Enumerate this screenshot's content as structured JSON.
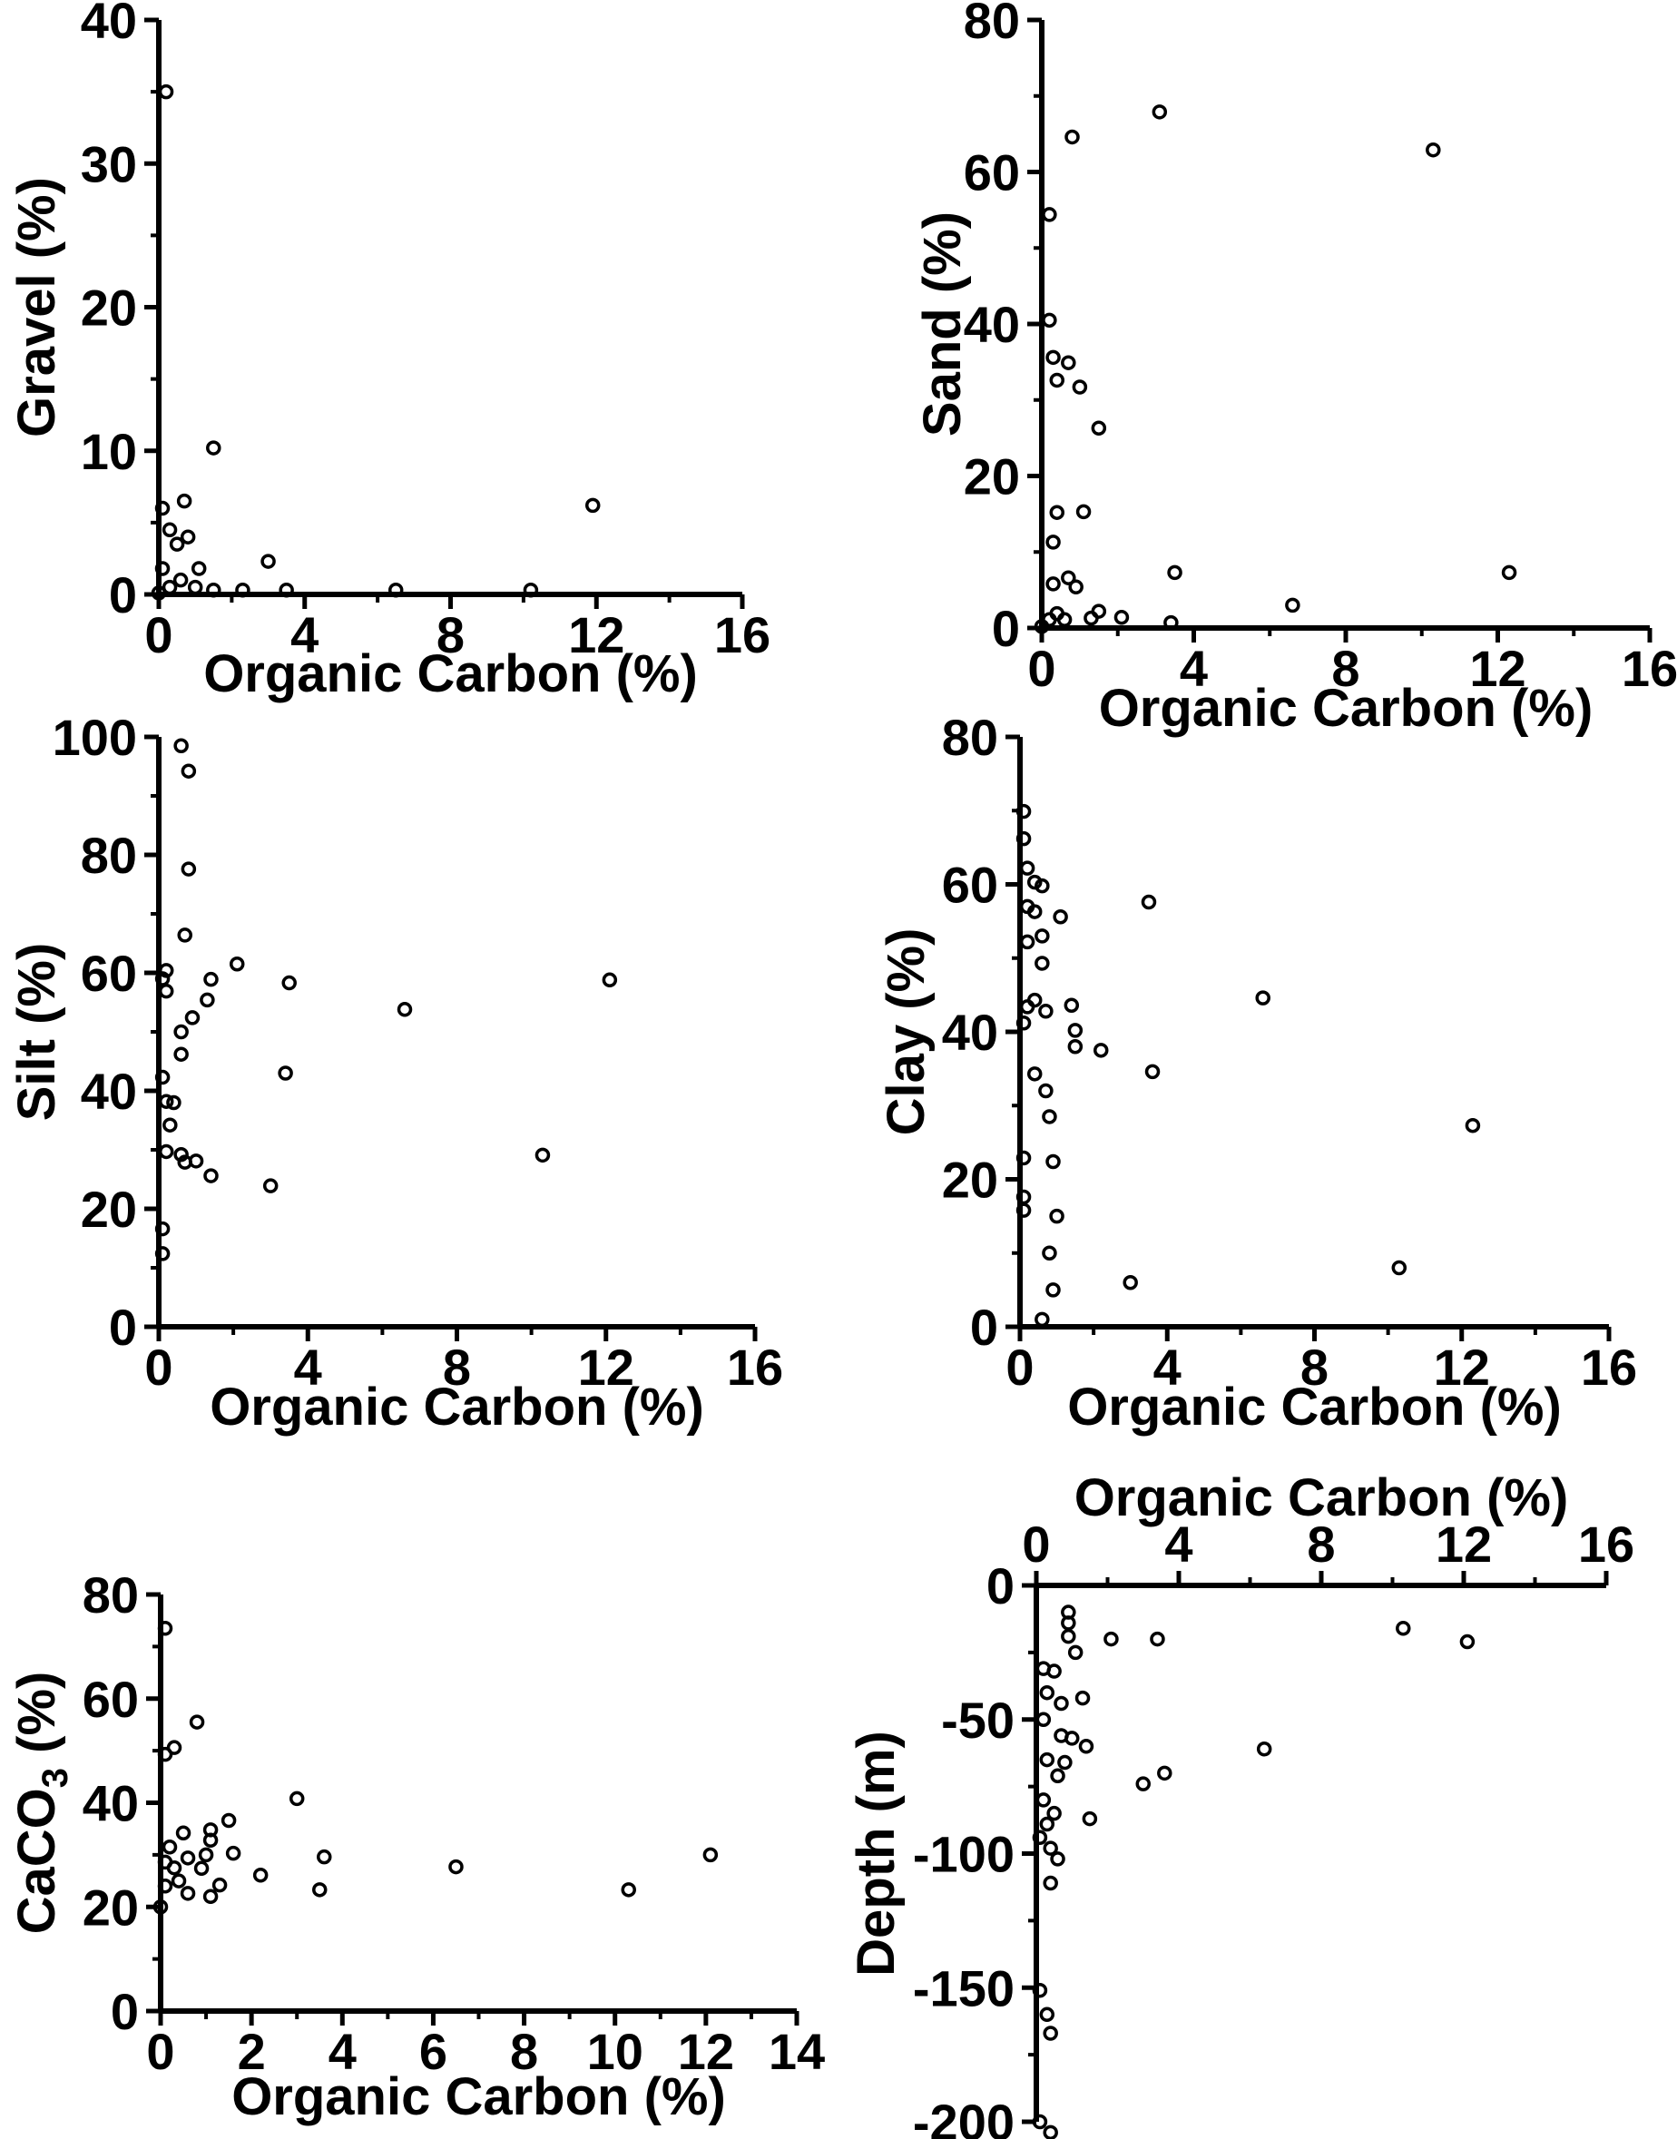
{
  "chart_data": [
    {
      "type": "scatter",
      "panel": "gravel",
      "xlabel": "Organic Carbon (%)",
      "ylabel": "Gravel (%)",
      "xlim": [
        0,
        16
      ],
      "ylim": [
        0,
        40
      ],
      "xticks": [
        0,
        4,
        8,
        12,
        16
      ],
      "yticks": [
        0,
        10,
        20,
        30,
        40
      ],
      "x_axis_position": "bottom",
      "grid": false,
      "points": [
        {
          "x": 0.2,
          "y": 35
        },
        {
          "x": 0.1,
          "y": 6
        },
        {
          "x": 0.3,
          "y": 4.5
        },
        {
          "x": 0.5,
          "y": 3.5
        },
        {
          "x": 0.7,
          "y": 6.5
        },
        {
          "x": 0.8,
          "y": 4
        },
        {
          "x": 0.1,
          "y": 1.8
        },
        {
          "x": 0.3,
          "y": 0.5
        },
        {
          "x": 0.6,
          "y": 1
        },
        {
          "x": 1.0,
          "y": 0.5
        },
        {
          "x": 1.1,
          "y": 1.8
        },
        {
          "x": 1.5,
          "y": 10.2
        },
        {
          "x": 1.5,
          "y": 0.3
        },
        {
          "x": 2.3,
          "y": 0.3
        },
        {
          "x": 3.0,
          "y": 2.3
        },
        {
          "x": 3.5,
          "y": 0.3
        },
        {
          "x": 6.5,
          "y": 0.3
        },
        {
          "x": 10.2,
          "y": 0.3
        },
        {
          "x": 11.9,
          "y": 6.2
        },
        {
          "x": 0.0,
          "y": 0.1
        }
      ]
    },
    {
      "type": "scatter",
      "panel": "sand",
      "xlabel": "Organic Carbon (%)",
      "ylabel": "Sand (%)",
      "xlim": [
        0,
        16
      ],
      "ylim": [
        0,
        80
      ],
      "xticks": [
        0,
        4,
        8,
        12,
        16
      ],
      "yticks": [
        0,
        20,
        40,
        60,
        80
      ],
      "x_axis_position": "bottom",
      "grid": false,
      "points": [
        {
          "x": 3.1,
          "y": 67.9
        },
        {
          "x": 10.3,
          "y": 62.9
        },
        {
          "x": 0.8,
          "y": 64.6
        },
        {
          "x": 0.2,
          "y": 54.4
        },
        {
          "x": 0.2,
          "y": 40.5
        },
        {
          "x": 0.3,
          "y": 35.6
        },
        {
          "x": 0.7,
          "y": 34.9
        },
        {
          "x": 0.4,
          "y": 32.6
        },
        {
          "x": 1.0,
          "y": 31.7
        },
        {
          "x": 1.5,
          "y": 26.3
        },
        {
          "x": 0.4,
          "y": 15.2
        },
        {
          "x": 1.1,
          "y": 15.3
        },
        {
          "x": 0.3,
          "y": 11.3
        },
        {
          "x": 0.7,
          "y": 6.6
        },
        {
          "x": 0.3,
          "y": 5.8
        },
        {
          "x": 0.9,
          "y": 5.4
        },
        {
          "x": 3.5,
          "y": 7.3
        },
        {
          "x": 12.3,
          "y": 7.3
        },
        {
          "x": 6.6,
          "y": 3.0
        },
        {
          "x": 1.5,
          "y": 2.2
        },
        {
          "x": 0.4,
          "y": 1.9
        },
        {
          "x": 0.2,
          "y": 1.1
        },
        {
          "x": 0.6,
          "y": 1.1
        },
        {
          "x": 1.3,
          "y": 1.3
        },
        {
          "x": 2.1,
          "y": 1.4
        },
        {
          "x": 3.4,
          "y": 0.7
        },
        {
          "x": 0.0,
          "y": 0.2
        }
      ]
    },
    {
      "type": "scatter",
      "panel": "silt",
      "xlabel": "Organic Carbon (%)",
      "ylabel": "Silt (%)",
      "xlim": [
        0,
        16
      ],
      "ylim": [
        0,
        100
      ],
      "xticks": [
        0,
        4,
        8,
        12,
        16
      ],
      "yticks": [
        0,
        20,
        40,
        60,
        80,
        100
      ],
      "x_axis_position": "bottom",
      "grid": false,
      "points": [
        {
          "x": 0.6,
          "y": 98.5
        },
        {
          "x": 0.8,
          "y": 94.2
        },
        {
          "x": 0.8,
          "y": 77.6
        },
        {
          "x": 0.7,
          "y": 66.4
        },
        {
          "x": 0.2,
          "y": 60.4
        },
        {
          "x": 0.1,
          "y": 59.0
        },
        {
          "x": 0.2,
          "y": 56.9
        },
        {
          "x": 1.4,
          "y": 58.9
        },
        {
          "x": 2.1,
          "y": 61.5
        },
        {
          "x": 3.5,
          "y": 58.3
        },
        {
          "x": 12.1,
          "y": 58.8
        },
        {
          "x": 1.3,
          "y": 55.4
        },
        {
          "x": 6.6,
          "y": 53.8
        },
        {
          "x": 0.9,
          "y": 52.4
        },
        {
          "x": 0.6,
          "y": 50.0
        },
        {
          "x": 0.6,
          "y": 46.2
        },
        {
          "x": 3.4,
          "y": 43.0
        },
        {
          "x": 0.1,
          "y": 42.3
        },
        {
          "x": 0.2,
          "y": 38.2
        },
        {
          "x": 0.4,
          "y": 38.0
        },
        {
          "x": 0.3,
          "y": 34.2
        },
        {
          "x": 0.2,
          "y": 29.7
        },
        {
          "x": 0.6,
          "y": 29.2
        },
        {
          "x": 0.7,
          "y": 27.9
        },
        {
          "x": 1.0,
          "y": 28.1
        },
        {
          "x": 10.3,
          "y": 29.1
        },
        {
          "x": 1.4,
          "y": 25.6
        },
        {
          "x": 3.0,
          "y": 23.9
        },
        {
          "x": 0.1,
          "y": 16.6
        },
        {
          "x": 0.1,
          "y": 12.4
        }
      ]
    },
    {
      "type": "scatter",
      "panel": "clay",
      "xlabel": "Organic Carbon (%)",
      "ylabel": "Clay (%)",
      "xlim": [
        0,
        16
      ],
      "ylim": [
        0,
        80
      ],
      "xticks": [
        0,
        4,
        8,
        12,
        16
      ],
      "yticks": [
        0,
        20,
        40,
        60,
        80
      ],
      "x_axis_position": "bottom",
      "grid": false,
      "points": [
        {
          "x": 0.1,
          "y": 69.9
        },
        {
          "x": 0.1,
          "y": 66.2
        },
        {
          "x": 0.2,
          "y": 62.2
        },
        {
          "x": 0.4,
          "y": 60.3
        },
        {
          "x": 0.6,
          "y": 59.8
        },
        {
          "x": 0.2,
          "y": 57.0
        },
        {
          "x": 0.4,
          "y": 56.3
        },
        {
          "x": 1.1,
          "y": 55.6
        },
        {
          "x": 3.5,
          "y": 57.6
        },
        {
          "x": 0.6,
          "y": 53.0
        },
        {
          "x": 0.2,
          "y": 52.2
        },
        {
          "x": 0.6,
          "y": 49.3
        },
        {
          "x": 6.6,
          "y": 44.6
        },
        {
          "x": 0.4,
          "y": 44.3
        },
        {
          "x": 1.4,
          "y": 43.6
        },
        {
          "x": 0.2,
          "y": 43.4
        },
        {
          "x": 0.7,
          "y": 42.8
        },
        {
          "x": 0.1,
          "y": 41.2
        },
        {
          "x": 1.5,
          "y": 40.2
        },
        {
          "x": 1.5,
          "y": 38.0
        },
        {
          "x": 2.2,
          "y": 37.5
        },
        {
          "x": 0.4,
          "y": 34.3
        },
        {
          "x": 3.6,
          "y": 34.6
        },
        {
          "x": 0.7,
          "y": 32.0
        },
        {
          "x": 0.8,
          "y": 28.5
        },
        {
          "x": 12.3,
          "y": 27.3
        },
        {
          "x": 0.1,
          "y": 22.9
        },
        {
          "x": 0.9,
          "y": 22.4
        },
        {
          "x": 0.1,
          "y": 17.6
        },
        {
          "x": 0.1,
          "y": 15.8
        },
        {
          "x": 1.0,
          "y": 15.0
        },
        {
          "x": 0.8,
          "y": 10.0
        },
        {
          "x": 10.3,
          "y": 8.0
        },
        {
          "x": 3.0,
          "y": 6.0
        },
        {
          "x": 0.9,
          "y": 5.0
        },
        {
          "x": 0.6,
          "y": 1.0
        }
      ]
    },
    {
      "type": "scatter",
      "panel": "caco3",
      "xlabel": "Organic Carbon (%)",
      "ylabel": "CaCO3 (%)",
      "xlim": [
        0,
        14
      ],
      "ylim": [
        0,
        80
      ],
      "xticks": [
        0,
        2,
        4,
        6,
        8,
        10,
        12,
        14
      ],
      "yticks": [
        0,
        20,
        40,
        60,
        80
      ],
      "x_axis_position": "bottom",
      "grid": false,
      "points": [
        {
          "x": 0.1,
          "y": 73.5
        },
        {
          "x": 0.8,
          "y": 55.5
        },
        {
          "x": 0.3,
          "y": 50.6
        },
        {
          "x": 0.1,
          "y": 49.3
        },
        {
          "x": 3.0,
          "y": 40.8
        },
        {
          "x": 1.5,
          "y": 36.6
        },
        {
          "x": 1.1,
          "y": 34.8
        },
        {
          "x": 0.5,
          "y": 34.2
        },
        {
          "x": 1.1,
          "y": 32.8
        },
        {
          "x": 0.2,
          "y": 31.5
        },
        {
          "x": 1.0,
          "y": 30.0
        },
        {
          "x": 1.6,
          "y": 30.3
        },
        {
          "x": 3.6,
          "y": 29.6
        },
        {
          "x": 12.1,
          "y": 30.0
        },
        {
          "x": 0.6,
          "y": 29.4
        },
        {
          "x": 0.1,
          "y": 28.6
        },
        {
          "x": 0.3,
          "y": 27.5
        },
        {
          "x": 0.9,
          "y": 27.4
        },
        {
          "x": 6.5,
          "y": 27.7
        },
        {
          "x": 2.2,
          "y": 26.1
        },
        {
          "x": 0.4,
          "y": 25.0
        },
        {
          "x": 1.3,
          "y": 24.2
        },
        {
          "x": 0.1,
          "y": 24.0
        },
        {
          "x": 3.5,
          "y": 23.3
        },
        {
          "x": 10.3,
          "y": 23.3
        },
        {
          "x": 0.6,
          "y": 22.6
        },
        {
          "x": 1.1,
          "y": 22.0
        },
        {
          "x": 0.0,
          "y": 20.0
        }
      ]
    },
    {
      "type": "scatter",
      "panel": "depth",
      "xlabel": "Organic Carbon (%)",
      "ylabel": "Depth (m)",
      "xlim": [
        0,
        16
      ],
      "ylim": [
        -200,
        0
      ],
      "xticks": [
        0,
        4,
        8,
        12,
        16
      ],
      "yticks": [
        0,
        -50,
        -100,
        -150,
        -200
      ],
      "x_axis_position": "top",
      "grid": false,
      "points": [
        {
          "x": 0.9,
          "y": -10
        },
        {
          "x": 0.9,
          "y": -14
        },
        {
          "x": 10.3,
          "y": -16
        },
        {
          "x": 0.9,
          "y": -19
        },
        {
          "x": 2.1,
          "y": -20
        },
        {
          "x": 3.4,
          "y": -20
        },
        {
          "x": 12.1,
          "y": -21
        },
        {
          "x": 1.1,
          "y": -25
        },
        {
          "x": 0.2,
          "y": -31
        },
        {
          "x": 0.5,
          "y": -32
        },
        {
          "x": 0.3,
          "y": -40
        },
        {
          "x": 1.3,
          "y": -42
        },
        {
          "x": 0.7,
          "y": -44
        },
        {
          "x": 0.2,
          "y": -50
        },
        {
          "x": 0.7,
          "y": -56
        },
        {
          "x": 1.0,
          "y": -57
        },
        {
          "x": 1.4,
          "y": -60
        },
        {
          "x": 6.4,
          "y": -61
        },
        {
          "x": 0.3,
          "y": -65
        },
        {
          "x": 0.8,
          "y": -66
        },
        {
          "x": 3.6,
          "y": -70
        },
        {
          "x": 0.6,
          "y": -71
        },
        {
          "x": 3.0,
          "y": -74
        },
        {
          "x": 0.2,
          "y": -80
        },
        {
          "x": 0.5,
          "y": -85
        },
        {
          "x": 1.5,
          "y": -87
        },
        {
          "x": 0.3,
          "y": -89
        },
        {
          "x": 0.1,
          "y": -94
        },
        {
          "x": 0.4,
          "y": -98
        },
        {
          "x": 0.6,
          "y": -102
        },
        {
          "x": 0.4,
          "y": -111
        },
        {
          "x": 0.1,
          "y": -151
        },
        {
          "x": 0.3,
          "y": -160
        },
        {
          "x": 0.4,
          "y": -167
        },
        {
          "x": 0.1,
          "y": -200
        },
        {
          "x": 0.4,
          "y": -204
        }
      ]
    }
  ]
}
